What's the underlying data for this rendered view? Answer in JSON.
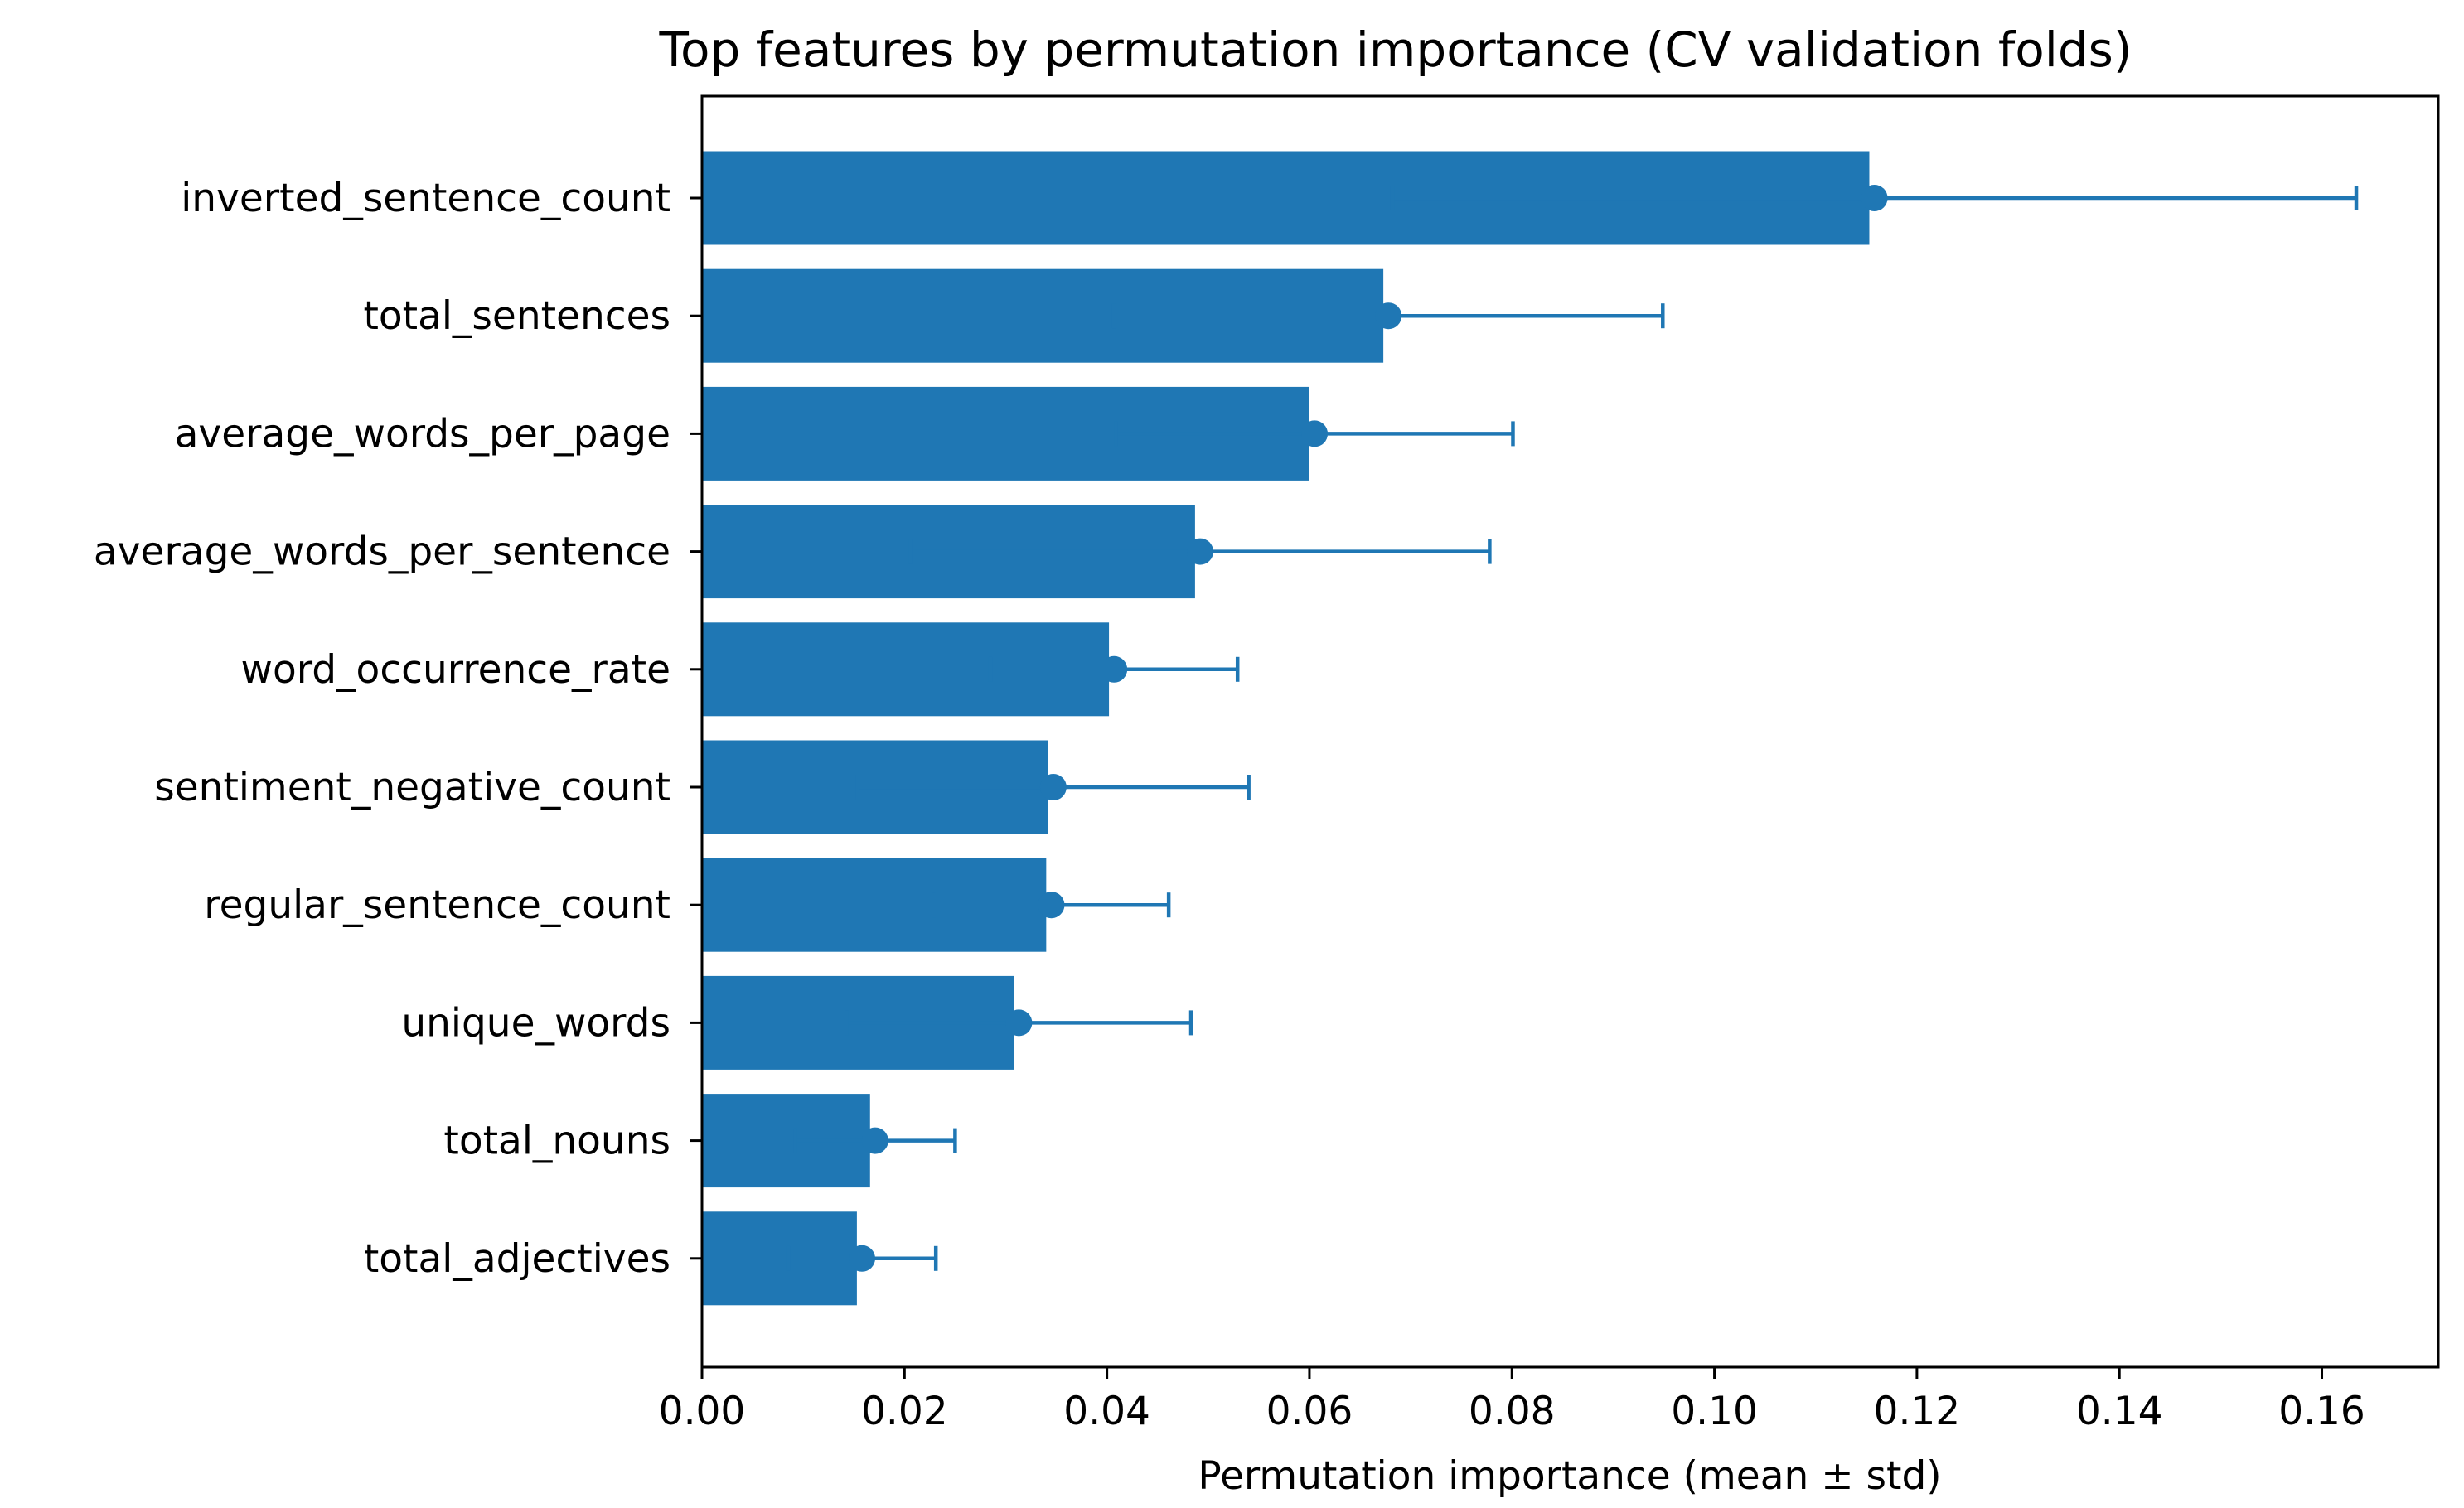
{
  "chart_data": {
    "type": "bar",
    "orientation": "horizontal",
    "title": "Top features by permutation importance (CV validation folds)",
    "xlabel": "Permutation importance (mean ± std)",
    "ylabel": "",
    "xlim": [
      0,
      0.1715
    ],
    "x_ticks": [
      0.0,
      0.02,
      0.04,
      0.06,
      0.08,
      0.1,
      0.12,
      0.14,
      0.16
    ],
    "x_tick_labels": [
      "0.00",
      "0.02",
      "0.04",
      "0.06",
      "0.08",
      "0.10",
      "0.12",
      "0.14",
      "0.16"
    ],
    "grid": false,
    "categories": [
      "inverted_sentence_count",
      "total_sentences",
      "average_words_per_page",
      "average_words_per_sentence",
      "word_occurrence_rate",
      "sentiment_negative_count",
      "regular_sentence_count",
      "unique_words",
      "total_nouns",
      "total_adjectives"
    ],
    "values": [
      0.1153,
      0.0673,
      0.06,
      0.0487,
      0.0402,
      0.0342,
      0.034,
      0.0308,
      0.0166,
      0.0153
    ],
    "error_mean": [
      0.1158,
      0.0678,
      0.0605,
      0.0492,
      0.0407,
      0.0347,
      0.0345,
      0.0313,
      0.0171,
      0.0158
    ],
    "error_std": [
      0.0476,
      0.0271,
      0.0196,
      0.0286,
      0.0122,
      0.0193,
      0.0116,
      0.017,
      0.0079,
      0.0073
    ],
    "colors": {
      "bar": "#1f77b4",
      "errorbar": "#1f77b4",
      "axis": "#000000"
    }
  }
}
